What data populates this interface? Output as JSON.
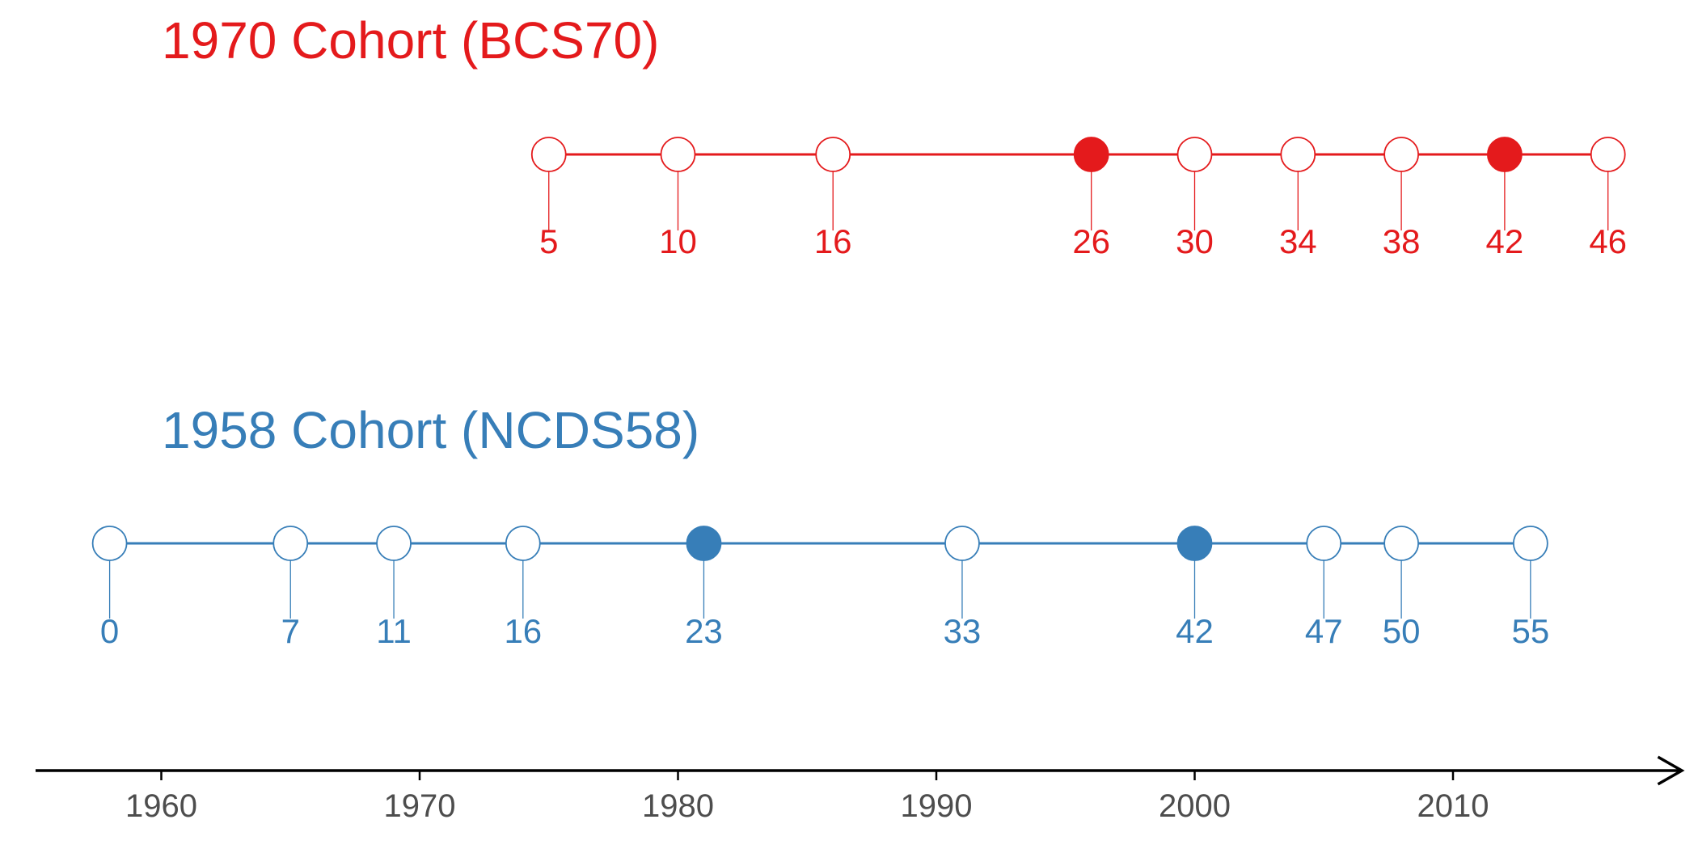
{
  "chart_data": {
    "type": "scatter",
    "title": "",
    "xlabel": "",
    "ylabel": "",
    "xlim": [
      1953,
      2018
    ],
    "x_ticks": [
      1960,
      1970,
      1980,
      1990,
      2000,
      2010
    ],
    "grid": false,
    "legend": "none",
    "series": [
      {
        "name": "1970 Cohort (BCS70)",
        "color": "#E41A1C",
        "birth_year": 1970,
        "sweeps": [
          {
            "year": 1975,
            "age": 5,
            "filled": false
          },
          {
            "year": 1980,
            "age": 10,
            "filled": false
          },
          {
            "year": 1986,
            "age": 16,
            "filled": false
          },
          {
            "year": 1996,
            "age": 26,
            "filled": true
          },
          {
            "year": 2000,
            "age": 30,
            "filled": false
          },
          {
            "year": 2004,
            "age": 34,
            "filled": false
          },
          {
            "year": 2008,
            "age": 38,
            "filled": false
          },
          {
            "year": 2012,
            "age": 42,
            "filled": true
          },
          {
            "year": 2016,
            "age": 46,
            "filled": false
          }
        ]
      },
      {
        "name": "1958 Cohort (NCDS58)",
        "color": "#377EB8",
        "birth_year": 1958,
        "sweeps": [
          {
            "year": 1958,
            "age": 0,
            "filled": false
          },
          {
            "year": 1965,
            "age": 7,
            "filled": false
          },
          {
            "year": 1969,
            "age": 11,
            "filled": false
          },
          {
            "year": 1974,
            "age": 16,
            "filled": false
          },
          {
            "year": 1981,
            "age": 23,
            "filled": true
          },
          {
            "year": 1991,
            "age": 33,
            "filled": false
          },
          {
            "year": 2000,
            "age": 42,
            "filled": true
          },
          {
            "year": 2005,
            "age": 47,
            "filled": false
          },
          {
            "year": 2008,
            "age": 50,
            "filled": false
          },
          {
            "year": 2013,
            "age": 55,
            "filled": false
          }
        ]
      }
    ],
    "axis_color": "#000000",
    "tick_label_color": "#4D4D4D"
  }
}
